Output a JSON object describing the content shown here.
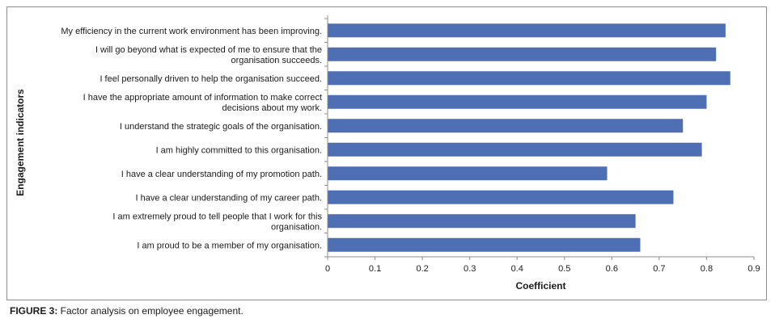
{
  "chart_data": {
    "type": "bar",
    "orientation": "horizontal",
    "categories": [
      [
        "My efficiency in the current work environment has been improving."
      ],
      [
        "I will go beyond what is expected of me to ensure that the",
        "organisation succeeds."
      ],
      [
        "I feel personally driven to help the organisation succeed."
      ],
      [
        "I have the appropriate amount of information to make correct",
        "decisions about my work."
      ],
      [
        "I understand the strategic goals of the organisation."
      ],
      [
        "I am highly committed to this organisation."
      ],
      [
        "I have a clear understanding of my promotion path."
      ],
      [
        "I have a clear understanding of my career path."
      ],
      [
        "I am extremely proud to tell people that I work for this",
        "organisation."
      ],
      [
        "I am proud to be a member of my organisation."
      ]
    ],
    "values": [
      0.84,
      0.82,
      0.85,
      0.8,
      0.75,
      0.79,
      0.59,
      0.73,
      0.65,
      0.66
    ],
    "xlim": [
      0,
      0.9
    ],
    "xticks": [
      "0",
      "0.1",
      "0.2",
      "0.3",
      "0.4",
      "0.5",
      "0.6",
      "0.7",
      "0.8",
      "0.9"
    ],
    "xlabel": "Coefficient",
    "ylabel": "Engagement indicators",
    "bar_color": "#4f6fb5",
    "grid": false,
    "legend": "none"
  },
  "caption": {
    "label": "FIGURE 3:",
    "text": " Factor analysis on employee engagement."
  }
}
